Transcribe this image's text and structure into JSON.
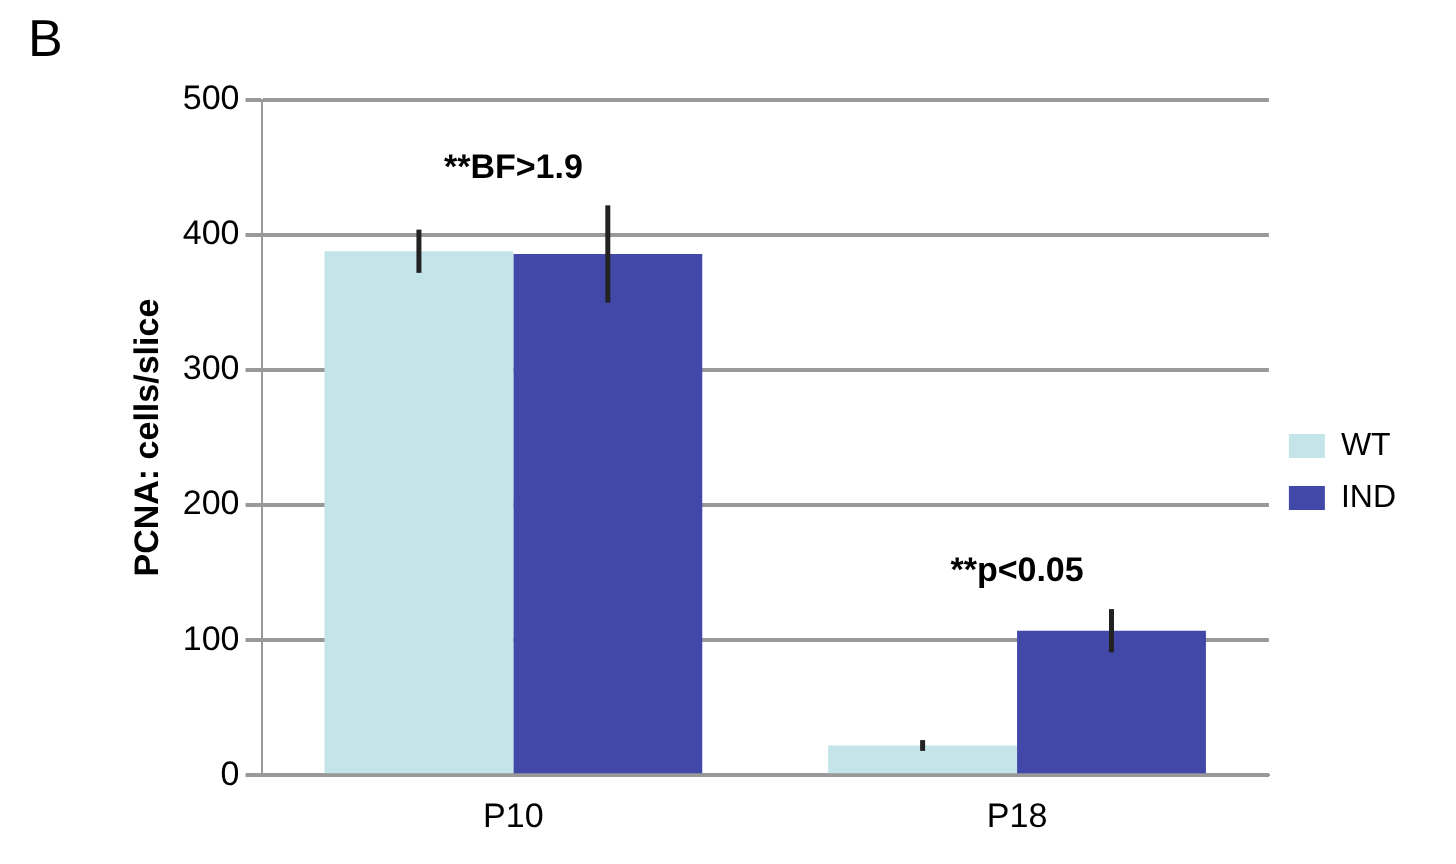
{
  "chart_data": {
    "type": "bar",
    "title": "B",
    "ylabel": "PCNA: cells/slice",
    "categories": [
      "P10",
      "P18"
    ],
    "series": [
      {
        "name": "WT",
        "color": "#c3e4e8",
        "values": [
          388,
          22
        ],
        "errors": [
          16,
          4
        ]
      },
      {
        "name": "IND",
        "color": "#4248a8",
        "values": [
          386,
          107
        ],
        "errors": [
          36,
          16
        ]
      }
    ],
    "ylim": [
      0,
      500
    ],
    "yticks": [
      0,
      100,
      200,
      300,
      400,
      500
    ],
    "grid": "y",
    "legend": "right",
    "annotations": [
      "**BF>1.9",
      "**p<0.05"
    ]
  }
}
